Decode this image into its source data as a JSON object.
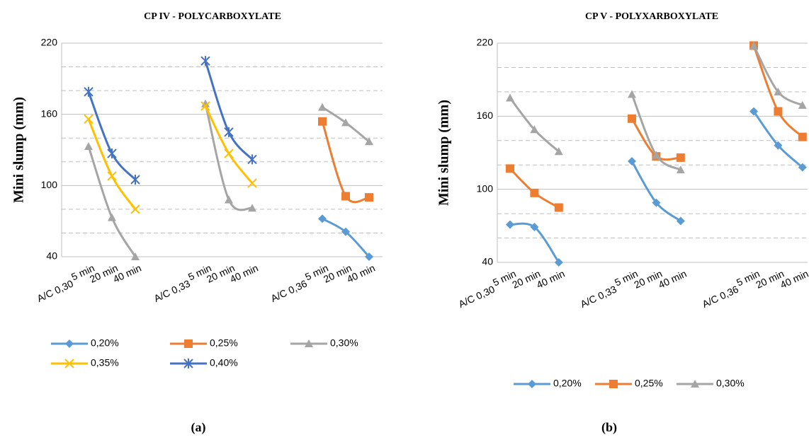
{
  "chart_data": [
    {
      "type": "line",
      "title": "CP IV - POLYCARBOXYLATE",
      "ylabel": "Mini slump (mm)",
      "caption": "(a)",
      "categories": [
        "5 min",
        "20 min",
        "40 min",
        null,
        null,
        "5 min",
        "20 min",
        "40 min",
        null,
        null,
        "5 min",
        "20 min",
        "40 min"
      ],
      "groups": [
        "A/C 0,30",
        "A/C 0,33",
        "A/C 0,36"
      ],
      "ylim": [
        40,
        220
      ],
      "yticks": [
        40,
        100,
        160,
        220
      ],
      "minor_yticks": [
        60,
        80,
        120,
        140,
        180,
        200
      ],
      "grid": true,
      "series": [
        {
          "name": "0,20%",
          "color": "#5b9bd5",
          "marker": "diamond",
          "values": [
            null,
            null,
            null,
            null,
            null,
            null,
            null,
            null,
            null,
            null,
            72,
            61,
            40
          ]
        },
        {
          "name": "0,25%",
          "color": "#ed7d31",
          "marker": "square",
          "values": [
            null,
            null,
            null,
            null,
            null,
            null,
            null,
            null,
            null,
            null,
            154,
            91,
            90
          ]
        },
        {
          "name": "0,30%",
          "color": "#a5a5a5",
          "marker": "triangle",
          "values": [
            133,
            73,
            40,
            null,
            null,
            169,
            88,
            81,
            null,
            null,
            166,
            153,
            137
          ]
        },
        {
          "name": "0,35%",
          "color": "#ffc000",
          "marker": "x",
          "values": [
            156,
            108,
            80,
            null,
            null,
            167,
            127,
            102,
            null,
            null,
            null,
            null,
            null
          ]
        },
        {
          "name": "0,40%",
          "color": "#4472c4",
          "marker": "star",
          "values": [
            179,
            127,
            105,
            null,
            null,
            205,
            145,
            122,
            null,
            null,
            null,
            null,
            null
          ]
        }
      ]
    },
    {
      "type": "line",
      "title": "CP V - POLYXARBOXYLATE",
      "ylabel": "Mini slump (mm)",
      "caption": "(b)",
      "categories": [
        "5 min",
        "20 min",
        "40 min",
        null,
        null,
        "5 min",
        "20 min",
        "40 min",
        null,
        null,
        "5 min",
        "20 min",
        "40 min"
      ],
      "groups": [
        "A/C 0,30",
        "A/C 0,33",
        "A/C 0,36"
      ],
      "ylim": [
        40,
        220
      ],
      "yticks": [
        40,
        100,
        160,
        220
      ],
      "minor_yticks": [
        60,
        80,
        120,
        140,
        180,
        200
      ],
      "grid": true,
      "series": [
        {
          "name": "0,20%",
          "color": "#5b9bd5",
          "marker": "diamond",
          "values": [
            71,
            69,
            40,
            null,
            null,
            123,
            89,
            74,
            null,
            null,
            164,
            136,
            118
          ]
        },
        {
          "name": "0,25%",
          "color": "#ed7d31",
          "marker": "square",
          "values": [
            117,
            97,
            85,
            null,
            null,
            158,
            127,
            126,
            null,
            null,
            218,
            164,
            143
          ]
        },
        {
          "name": "0,30%",
          "color": "#a5a5a5",
          "marker": "triangle",
          "values": [
            175,
            149,
            131,
            null,
            null,
            178,
            128,
            116,
            null,
            null,
            218,
            180,
            169
          ]
        }
      ]
    }
  ]
}
